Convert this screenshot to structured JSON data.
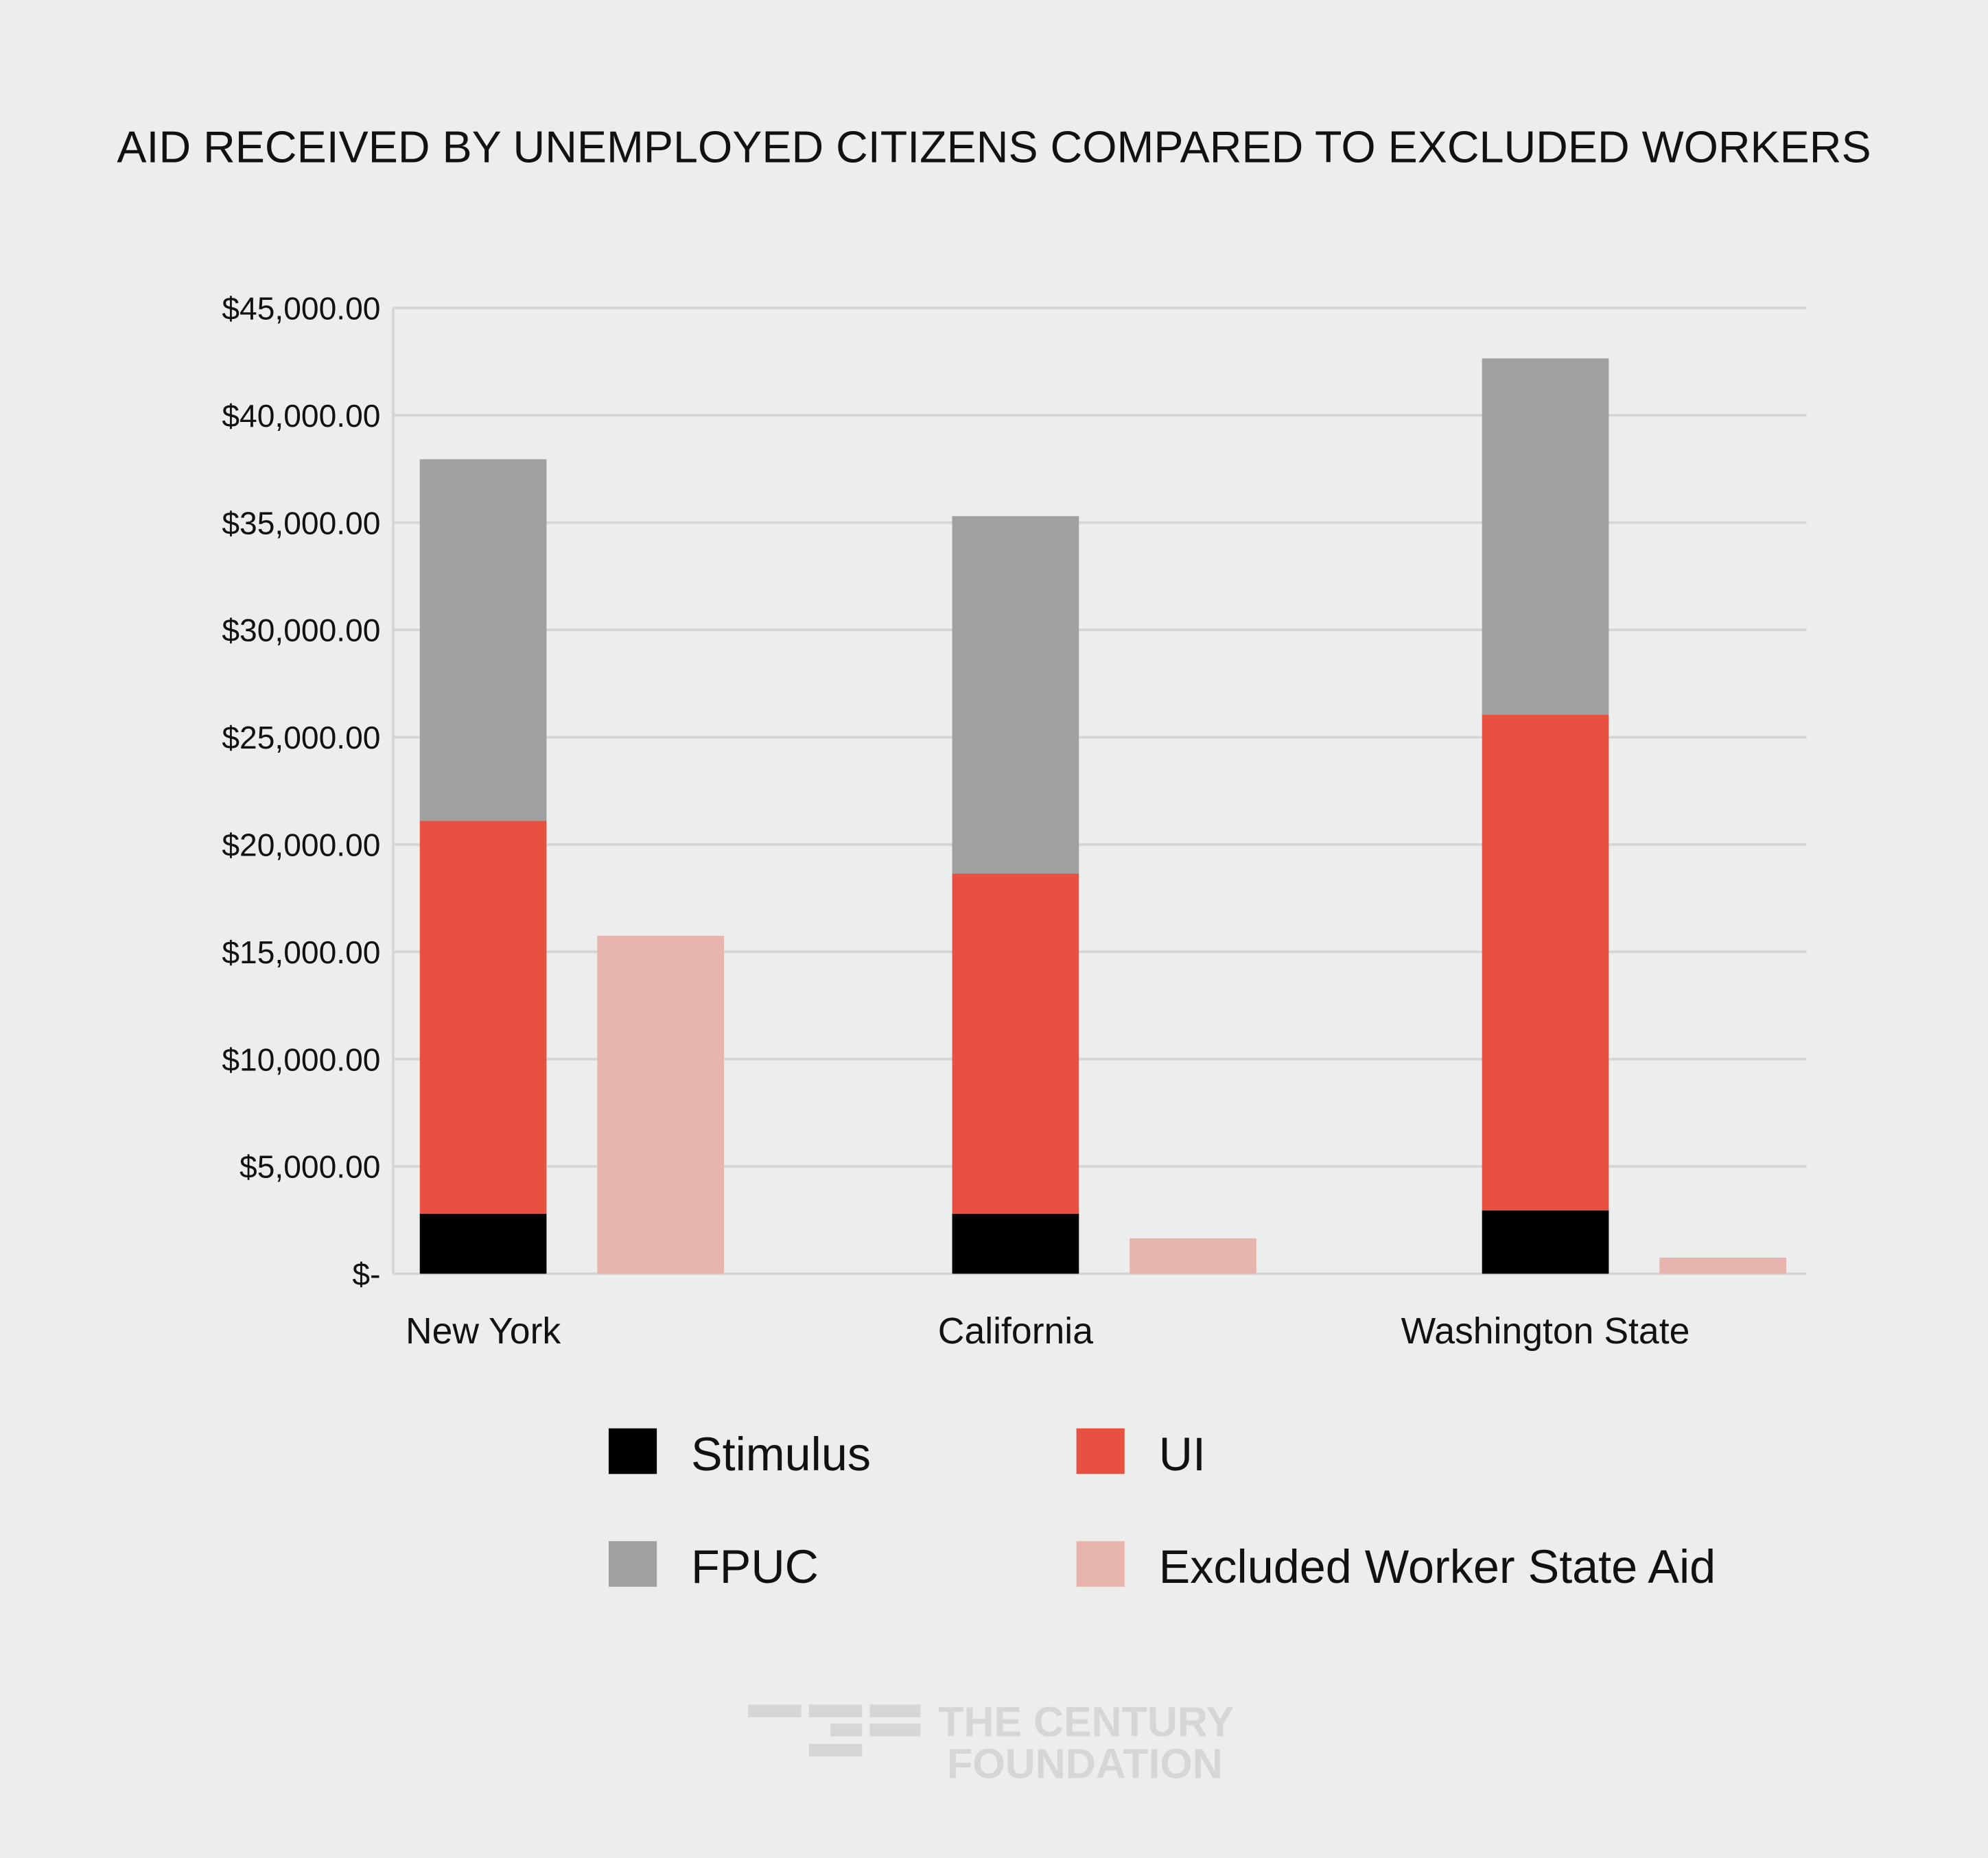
{
  "chart_data": {
    "type": "bar",
    "stacked": true,
    "title": "AID RECEIVED BY UNEMPLOYED CITIZENS COMPARED TO EXCLUDED WORKERS",
    "xlabel": "",
    "ylabel": "",
    "ylim": [
      0,
      45000
    ],
    "yticks": [
      0,
      5000,
      10000,
      15000,
      20000,
      25000,
      30000,
      35000,
      40000,
      45000
    ],
    "ytick_labels": [
      "$-",
      "$5,000.00",
      "$10,000.00",
      "$15,000.00",
      "$20,000.00",
      "$25,000.00",
      "$30,000.00",
      "$35,000.00",
      "$40,000.00",
      "$45,000.00"
    ],
    "grid": true,
    "legend_position": "bottom",
    "categories": [
      "New York",
      "California",
      "Washington State"
    ],
    "series": [
      {
        "name": "Stimulus",
        "stack": "citizens",
        "color": "#000000",
        "values": [
          2800,
          2800,
          2950
        ]
      },
      {
        "name": "UI",
        "stack": "citizens",
        "color": "#e85142",
        "values": [
          18300,
          15850,
          23100
        ]
      },
      {
        "name": "FPUC",
        "stack": "citizens",
        "color": "#a0a0a0",
        "values": [
          16850,
          16650,
          16600
        ]
      },
      {
        "name": "Excluded Worker State Aid",
        "stack": "excluded",
        "color": "#e8b4ae",
        "values": [
          15750,
          1650,
          750
        ]
      }
    ],
    "legend_order": [
      0,
      1,
      2,
      3
    ]
  },
  "logo": {
    "line1": "THE CENTURY",
    "line2": "FOUNDATION",
    "color": "#d5d7d7"
  }
}
